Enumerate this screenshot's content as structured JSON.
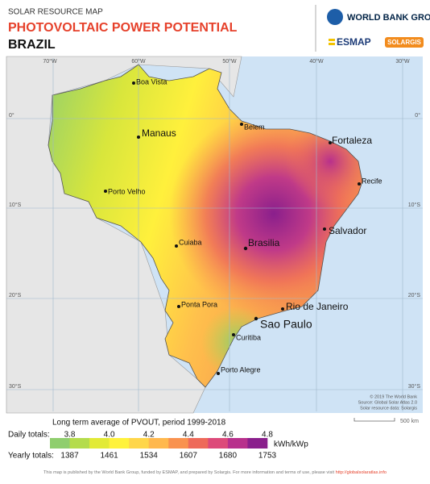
{
  "header": {
    "kicker": "SOLAR RESOURCE MAP",
    "title": "PHOTOVOLTAIC POWER POTENTIAL",
    "country": "BRAZIL"
  },
  "logos": {
    "world_bank": "WORLD BANK GROUP",
    "esmap": "ESMAP",
    "solargis": "SOLARGIS"
  },
  "graticule": {
    "top": [
      "70°W",
      "60°W",
      "50°W",
      "40°W",
      "30°W"
    ],
    "left": [
      "0°",
      "10°S",
      "20°S",
      "30°S"
    ],
    "right": [
      "0°",
      "10°S",
      "20°S",
      "30°S"
    ]
  },
  "cities": [
    "Boa Vista",
    "Manaus",
    "Belem",
    "Fortaleza",
    "Recife",
    "Porto Velho",
    "Salvador",
    "Cuiaba",
    "Brasilia",
    "Ponta Pora",
    "Rio de Janeiro",
    "Sao Paulo",
    "Curitiba",
    "Porto Alegre"
  ],
  "credits": [
    "© 2019 The World Bank",
    "Source: Global Solar Atlas 2.0",
    "Solar resource data: Solargis"
  ],
  "scale": "500 km",
  "legend": {
    "title": "Long term average of PVOUT, period 1999-2018",
    "daily_label": "Daily totals:",
    "daily": [
      "3.8",
      "4.0",
      "4.2",
      "4.4",
      "4.6",
      "4.8"
    ],
    "yearly_label": "Yearly totals:",
    "yearly": [
      "1387",
      "1461",
      "1534",
      "1607",
      "1680",
      "1753"
    ],
    "unit": "kWh/kWp",
    "colors": [
      "#8fce6e",
      "#b4dc4c",
      "#e2ea36",
      "#fff23c",
      "#ffd64a",
      "#ffb84e",
      "#f9924f",
      "#ee6a5a",
      "#dd4a7a",
      "#b8308c",
      "#8a1f8c"
    ]
  },
  "footer": {
    "text": "This map is published by the World Bank Group, funded by ESMAP, and prepared by Solargis. For more information and terms of use, please visit ",
    "link": "http://globalsolaratlas.info"
  }
}
